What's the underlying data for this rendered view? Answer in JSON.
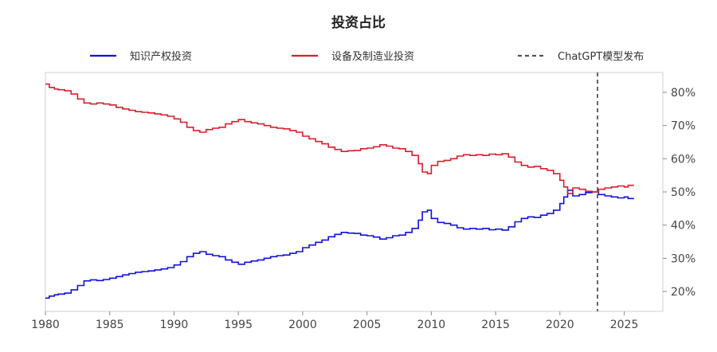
{
  "chart_data": {
    "type": "line",
    "title": "投资占比",
    "xlabel": "",
    "ylabel": "",
    "xlim": [
      1980,
      2028
    ],
    "ylim": [
      14,
      86
    ],
    "x_ticks": [
      1980,
      1985,
      1990,
      1995,
      2000,
      2005,
      2010,
      2015,
      2020,
      2025
    ],
    "y_ticks": [
      20,
      30,
      40,
      50,
      60,
      70,
      80
    ],
    "y_tick_labels": [
      "20%",
      "30%",
      "40%",
      "50%",
      "60%",
      "70%",
      "80%"
    ],
    "y_axis_position": "right",
    "grid": false,
    "legend_placement": "top",
    "series": [
      {
        "name": "知识产权投资",
        "color": "#1010e0",
        "step": true,
        "points": [
          [
            1980.0,
            18.0
          ],
          [
            1980.3,
            18.6
          ],
          [
            1980.7,
            19.0
          ],
          [
            1981.0,
            19.2
          ],
          [
            1981.5,
            19.5
          ],
          [
            1982.0,
            20.5
          ],
          [
            1982.5,
            21.8
          ],
          [
            1983.0,
            23.2
          ],
          [
            1983.5,
            23.5
          ],
          [
            1984.0,
            23.3
          ],
          [
            1984.5,
            23.6
          ],
          [
            1985.0,
            24.0
          ],
          [
            1985.5,
            24.5
          ],
          [
            1986.0,
            25.0
          ],
          [
            1986.5,
            25.4
          ],
          [
            1987.0,
            25.8
          ],
          [
            1987.5,
            26.0
          ],
          [
            1988.0,
            26.2
          ],
          [
            1988.5,
            26.5
          ],
          [
            1989.0,
            26.8
          ],
          [
            1989.5,
            27.2
          ],
          [
            1990.0,
            28.0
          ],
          [
            1990.5,
            29.0
          ],
          [
            1991.0,
            30.5
          ],
          [
            1991.5,
            31.5
          ],
          [
            1992.0,
            32.0
          ],
          [
            1992.5,
            31.2
          ],
          [
            1993.0,
            30.8
          ],
          [
            1993.5,
            30.5
          ],
          [
            1994.0,
            29.5
          ],
          [
            1994.5,
            28.8
          ],
          [
            1995.0,
            28.2
          ],
          [
            1995.5,
            28.8
          ],
          [
            1996.0,
            29.2
          ],
          [
            1996.5,
            29.5
          ],
          [
            1997.0,
            30.0
          ],
          [
            1997.5,
            30.5
          ],
          [
            1998.0,
            30.8
          ],
          [
            1998.5,
            31.0
          ],
          [
            1999.0,
            31.5
          ],
          [
            1999.5,
            32.0
          ],
          [
            2000.0,
            33.2
          ],
          [
            2000.5,
            34.0
          ],
          [
            2001.0,
            34.8
          ],
          [
            2001.5,
            35.5
          ],
          [
            2002.0,
            36.5
          ],
          [
            2002.5,
            37.2
          ],
          [
            2003.0,
            37.8
          ],
          [
            2003.5,
            37.6
          ],
          [
            2004.0,
            37.5
          ],
          [
            2004.5,
            37.0
          ],
          [
            2005.0,
            36.8
          ],
          [
            2005.5,
            36.4
          ],
          [
            2006.0,
            35.8
          ],
          [
            2006.5,
            36.2
          ],
          [
            2007.0,
            36.8
          ],
          [
            2007.5,
            37.0
          ],
          [
            2008.0,
            37.8
          ],
          [
            2008.5,
            39.0
          ],
          [
            2009.0,
            41.5
          ],
          [
            2009.3,
            44.0
          ],
          [
            2009.7,
            44.5
          ],
          [
            2010.0,
            42.0
          ],
          [
            2010.5,
            40.8
          ],
          [
            2011.0,
            40.5
          ],
          [
            2011.5,
            40.0
          ],
          [
            2012.0,
            39.2
          ],
          [
            2012.5,
            38.8
          ],
          [
            2013.0,
            39.0
          ],
          [
            2013.5,
            38.8
          ],
          [
            2014.0,
            39.0
          ],
          [
            2014.5,
            38.6
          ],
          [
            2015.0,
            38.8
          ],
          [
            2015.5,
            38.5
          ],
          [
            2016.0,
            39.5
          ],
          [
            2016.5,
            41.0
          ],
          [
            2017.0,
            42.0
          ],
          [
            2017.5,
            42.5
          ],
          [
            2018.0,
            42.3
          ],
          [
            2018.5,
            43.0
          ],
          [
            2019.0,
            43.5
          ],
          [
            2019.5,
            44.5
          ],
          [
            2020.0,
            46.5
          ],
          [
            2020.3,
            48.5
          ],
          [
            2020.6,
            50.5
          ],
          [
            2021.0,
            48.8
          ],
          [
            2021.5,
            49.2
          ],
          [
            2022.0,
            49.8
          ],
          [
            2022.5,
            50.0
          ],
          [
            2023.0,
            49.2
          ],
          [
            2023.5,
            48.8
          ],
          [
            2024.0,
            48.5
          ],
          [
            2024.5,
            48.2
          ],
          [
            2025.0,
            48.5
          ],
          [
            2025.3,
            48.0
          ],
          [
            2025.7,
            47.8
          ]
        ]
      },
      {
        "name": "设备及制造业投资",
        "color": "#d81e2c",
        "step": true,
        "points": [
          [
            1980.0,
            82.5
          ],
          [
            1980.3,
            81.5
          ],
          [
            1980.7,
            81.0
          ],
          [
            1981.0,
            80.8
          ],
          [
            1981.5,
            80.5
          ],
          [
            1982.0,
            79.5
          ],
          [
            1982.5,
            78.0
          ],
          [
            1983.0,
            76.8
          ],
          [
            1983.5,
            76.5
          ],
          [
            1984.0,
            76.8
          ],
          [
            1984.5,
            76.5
          ],
          [
            1985.0,
            76.2
          ],
          [
            1985.5,
            75.5
          ],
          [
            1986.0,
            75.0
          ],
          [
            1986.5,
            74.6
          ],
          [
            1987.0,
            74.2
          ],
          [
            1987.5,
            74.0
          ],
          [
            1988.0,
            73.8
          ],
          [
            1988.5,
            73.5
          ],
          [
            1989.0,
            73.2
          ],
          [
            1989.5,
            72.8
          ],
          [
            1990.0,
            72.0
          ],
          [
            1990.5,
            71.0
          ],
          [
            1991.0,
            69.5
          ],
          [
            1991.5,
            68.5
          ],
          [
            1992.0,
            68.0
          ],
          [
            1992.5,
            68.8
          ],
          [
            1993.0,
            69.2
          ],
          [
            1993.5,
            69.5
          ],
          [
            1994.0,
            70.5
          ],
          [
            1994.5,
            71.2
          ],
          [
            1995.0,
            71.8
          ],
          [
            1995.5,
            71.2
          ],
          [
            1996.0,
            70.8
          ],
          [
            1996.5,
            70.5
          ],
          [
            1997.0,
            70.0
          ],
          [
            1997.5,
            69.5
          ],
          [
            1998.0,
            69.2
          ],
          [
            1998.5,
            69.0
          ],
          [
            1999.0,
            68.5
          ],
          [
            1999.5,
            68.0
          ],
          [
            2000.0,
            66.8
          ],
          [
            2000.5,
            66.0
          ],
          [
            2001.0,
            65.2
          ],
          [
            2001.5,
            64.5
          ],
          [
            2002.0,
            63.5
          ],
          [
            2002.5,
            62.8
          ],
          [
            2003.0,
            62.2
          ],
          [
            2003.5,
            62.4
          ],
          [
            2004.0,
            62.5
          ],
          [
            2004.5,
            63.0
          ],
          [
            2005.0,
            63.2
          ],
          [
            2005.5,
            63.6
          ],
          [
            2006.0,
            64.2
          ],
          [
            2006.5,
            63.8
          ],
          [
            2007.0,
            63.2
          ],
          [
            2007.5,
            63.0
          ],
          [
            2008.0,
            62.2
          ],
          [
            2008.5,
            61.0
          ],
          [
            2009.0,
            58.5
          ],
          [
            2009.3,
            56.0
          ],
          [
            2009.7,
            55.5
          ],
          [
            2010.0,
            58.0
          ],
          [
            2010.5,
            59.2
          ],
          [
            2011.0,
            59.5
          ],
          [
            2011.5,
            60.0
          ],
          [
            2012.0,
            60.8
          ],
          [
            2012.5,
            61.2
          ],
          [
            2013.0,
            61.0
          ],
          [
            2013.5,
            61.2
          ],
          [
            2014.0,
            61.0
          ],
          [
            2014.5,
            61.4
          ],
          [
            2015.0,
            61.2
          ],
          [
            2015.5,
            61.5
          ],
          [
            2016.0,
            60.5
          ],
          [
            2016.5,
            59.0
          ],
          [
            2017.0,
            58.0
          ],
          [
            2017.5,
            57.5
          ],
          [
            2018.0,
            57.7
          ],
          [
            2018.5,
            57.0
          ],
          [
            2019.0,
            56.5
          ],
          [
            2019.5,
            55.5
          ],
          [
            2020.0,
            53.5
          ],
          [
            2020.3,
            51.5
          ],
          [
            2020.6,
            49.5
          ],
          [
            2021.0,
            51.2
          ],
          [
            2021.5,
            50.8
          ],
          [
            2022.0,
            50.2
          ],
          [
            2022.5,
            50.0
          ],
          [
            2023.0,
            50.8
          ],
          [
            2023.5,
            51.2
          ],
          [
            2024.0,
            51.5
          ],
          [
            2024.5,
            51.8
          ],
          [
            2025.0,
            51.5
          ],
          [
            2025.3,
            52.0
          ],
          [
            2025.7,
            52.2
          ]
        ]
      }
    ],
    "annotations": [
      {
        "type": "vline",
        "x": 2022.92,
        "name": "ChatGPT模型发布",
        "color": "#555555",
        "style": "dashed"
      }
    ]
  }
}
